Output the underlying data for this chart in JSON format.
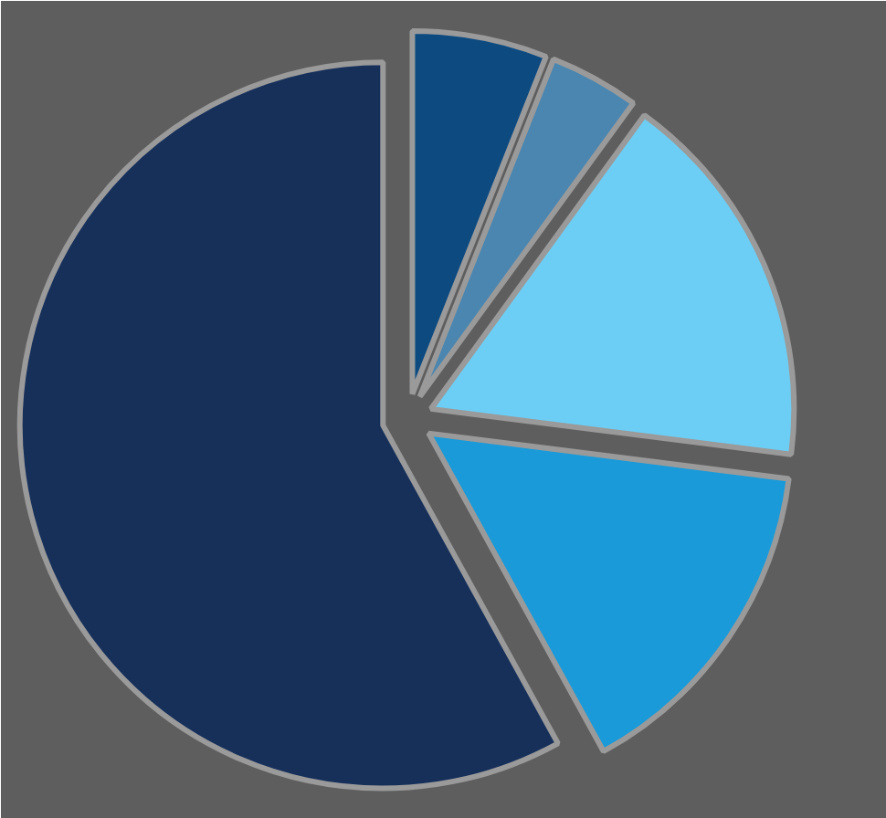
{
  "chart_data": {
    "type": "pie",
    "categories": [
      null,
      null,
      null,
      null,
      null
    ],
    "values": [
      6,
      4,
      17,
      15,
      58
    ],
    "colors": [
      "#0d4a80",
      "#4a86b0",
      "#6dcef5",
      "#1a9ad8",
      "#17305a"
    ]
  }
}
